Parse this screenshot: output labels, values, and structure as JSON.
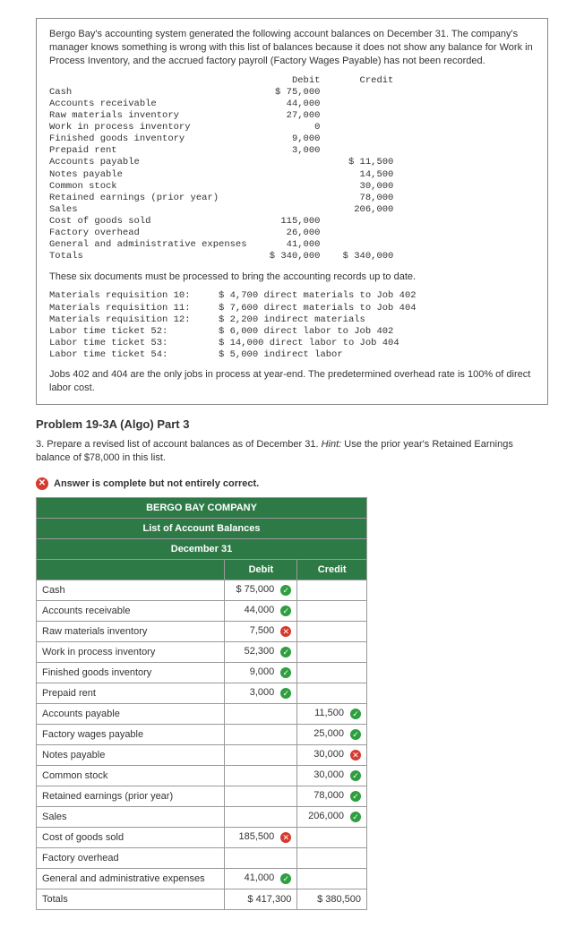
{
  "intro": "Bergo Bay's accounting system generated the following account balances on December 31. The company's manager knows something is wrong with this list of balances because it does not show any balance for Work in Process Inventory, and the accrued factory payroll (Factory Wages Payable) has not been recorded.",
  "tb": {
    "col_debit": "Debit",
    "col_credit": "Credit",
    "rows": [
      {
        "n": "Cash",
        "d": "$ 75,000",
        "c": ""
      },
      {
        "n": "Accounts receivable",
        "d": "44,000",
        "c": ""
      },
      {
        "n": "Raw materials inventory",
        "d": "27,000",
        "c": ""
      },
      {
        "n": "Work in process inventory",
        "d": "0",
        "c": ""
      },
      {
        "n": "Finished goods inventory",
        "d": "9,000",
        "c": ""
      },
      {
        "n": "Prepaid rent",
        "d": "3,000",
        "c": ""
      },
      {
        "n": "Accounts payable",
        "d": "",
        "c": "$ 11,500"
      },
      {
        "n": "Notes payable",
        "d": "",
        "c": "14,500"
      },
      {
        "n": "Common stock",
        "d": "",
        "c": "30,000"
      },
      {
        "n": "Retained earnings (prior year)",
        "d": "",
        "c": "78,000"
      },
      {
        "n": "Sales",
        "d": "",
        "c": "206,000"
      },
      {
        "n": "Cost of goods sold",
        "d": "115,000",
        "c": ""
      },
      {
        "n": "Factory overhead",
        "d": "26,000",
        "c": ""
      },
      {
        "n": "General and administrative expenses",
        "d": "41,000",
        "c": ""
      }
    ],
    "totals": {
      "n": "Totals",
      "d": "$ 340,000",
      "c": "$ 340,000"
    }
  },
  "docs_intro": "These six documents must be processed to bring the accounting records up to date.",
  "docs": [
    {
      "n": "Materials requisition 10:",
      "v": "$ 4,700 direct materials to Job 402"
    },
    {
      "n": "Materials requisition 11:",
      "v": "$ 7,600 direct materials to Job 404"
    },
    {
      "n": "Materials requisition 12:",
      "v": "$ 2,200 indirect materials"
    },
    {
      "n": "Labor time ticket 52:",
      "v": "$ 6,000 direct labor to Job 402"
    },
    {
      "n": "Labor time ticket 53:",
      "v": "$ 14,000 direct labor to Job 404"
    },
    {
      "n": "Labor time ticket 54:",
      "v": "$ 5,000 indirect labor"
    }
  ],
  "docs_note": "Jobs 402 and 404 are the only jobs in process at year-end. The predetermined overhead rate is 100% of direct labor cost.",
  "problem_title": "Problem 19-3A (Algo) Part 3",
  "question": "3. Prepare a revised list of account balances as of December 31. Hint: Use the prior year's Retained Earnings balance of $78,000 in this list.",
  "feedback_label": "Answer is complete but not entirely correct.",
  "answer": {
    "company": "BERGO BAY COMPANY",
    "title": "List of Account Balances",
    "date": "December 31",
    "col_debit": "Debit",
    "col_credit": "Credit",
    "rows": [
      {
        "n": "Cash",
        "d": "$    75,000",
        "ds": "ok",
        "c": "",
        "cs": ""
      },
      {
        "n": "Accounts receivable",
        "d": "44,000",
        "ds": "ok",
        "c": "",
        "cs": ""
      },
      {
        "n": "Raw materials inventory",
        "d": "7,500",
        "ds": "bad",
        "c": "",
        "cs": ""
      },
      {
        "n": "Work in process inventory",
        "d": "52,300",
        "ds": "ok",
        "c": "",
        "cs": ""
      },
      {
        "n": "Finished goods inventory",
        "d": "9,000",
        "ds": "ok",
        "c": "",
        "cs": ""
      },
      {
        "n": "Prepaid rent",
        "d": "3,000",
        "ds": "ok",
        "c": "",
        "cs": ""
      },
      {
        "n": "Accounts payable",
        "d": "",
        "ds": "",
        "c": "11,500",
        "cs": "ok"
      },
      {
        "n": "Factory wages payable",
        "d": "",
        "ds": "",
        "c": "25,000",
        "cs": "ok"
      },
      {
        "n": "Notes payable",
        "d": "",
        "ds": "",
        "c": "30,000",
        "cs": "bad"
      },
      {
        "n": "Common stock",
        "d": "",
        "ds": "",
        "c": "30,000",
        "cs": "ok"
      },
      {
        "n": "Retained earnings (prior year)",
        "d": "",
        "ds": "",
        "c": "78,000",
        "cs": "ok"
      },
      {
        "n": "Sales",
        "d": "",
        "ds": "",
        "c": "206,000",
        "cs": "ok"
      },
      {
        "n": "Cost of goods sold",
        "d": "185,500",
        "ds": "bad",
        "c": "",
        "cs": ""
      },
      {
        "n": "Factory overhead",
        "d": "",
        "ds": "",
        "c": "",
        "cs": ""
      },
      {
        "n": "General and administrative expenses",
        "d": "41,000",
        "ds": "ok",
        "c": "",
        "cs": ""
      }
    ],
    "totals": {
      "n": "Totals",
      "d": "$   417,300",
      "c": "$   380,500"
    }
  }
}
